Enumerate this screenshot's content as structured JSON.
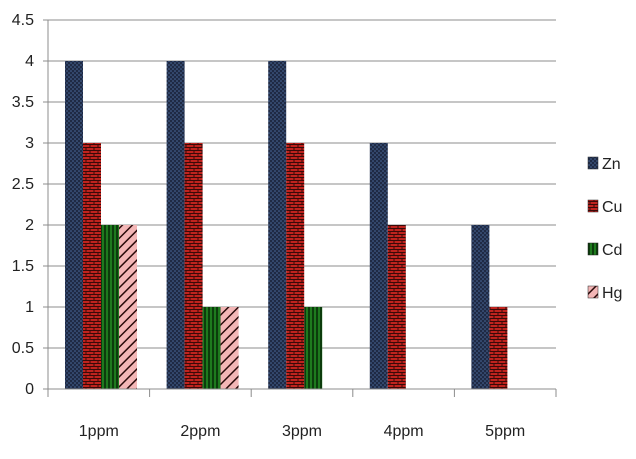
{
  "chart_data": {
    "type": "bar",
    "title": "",
    "xlabel": "",
    "ylabel": "",
    "categories": [
      "1ppm",
      "2ppm",
      "3ppm",
      "4ppm",
      "5ppm"
    ],
    "ylim": [
      0,
      4.5
    ],
    "yticks": [
      "0",
      "0.5",
      "1",
      "1.5",
      "2",
      "2.5",
      "3",
      "3.5",
      "4",
      "4.5"
    ],
    "grid": true,
    "legend_position": "right",
    "series": [
      {
        "name": "Zn",
        "values": [
          4,
          4,
          4,
          3,
          2
        ],
        "color": "#1f2a44",
        "pattern": "dotted"
      },
      {
        "name": "Cu",
        "values": [
          3,
          3,
          3,
          2,
          1
        ],
        "color": "#c0231e",
        "pattern": "brick"
      },
      {
        "name": "Cd",
        "values": [
          2,
          1,
          1,
          0,
          0
        ],
        "color": "#1e7a1e",
        "pattern": "vertical-stripes"
      },
      {
        "name": "Hg",
        "values": [
          2,
          1,
          0,
          0,
          0
        ],
        "color": "#e88a8a",
        "pattern": "diagonal-stripes"
      }
    ]
  }
}
